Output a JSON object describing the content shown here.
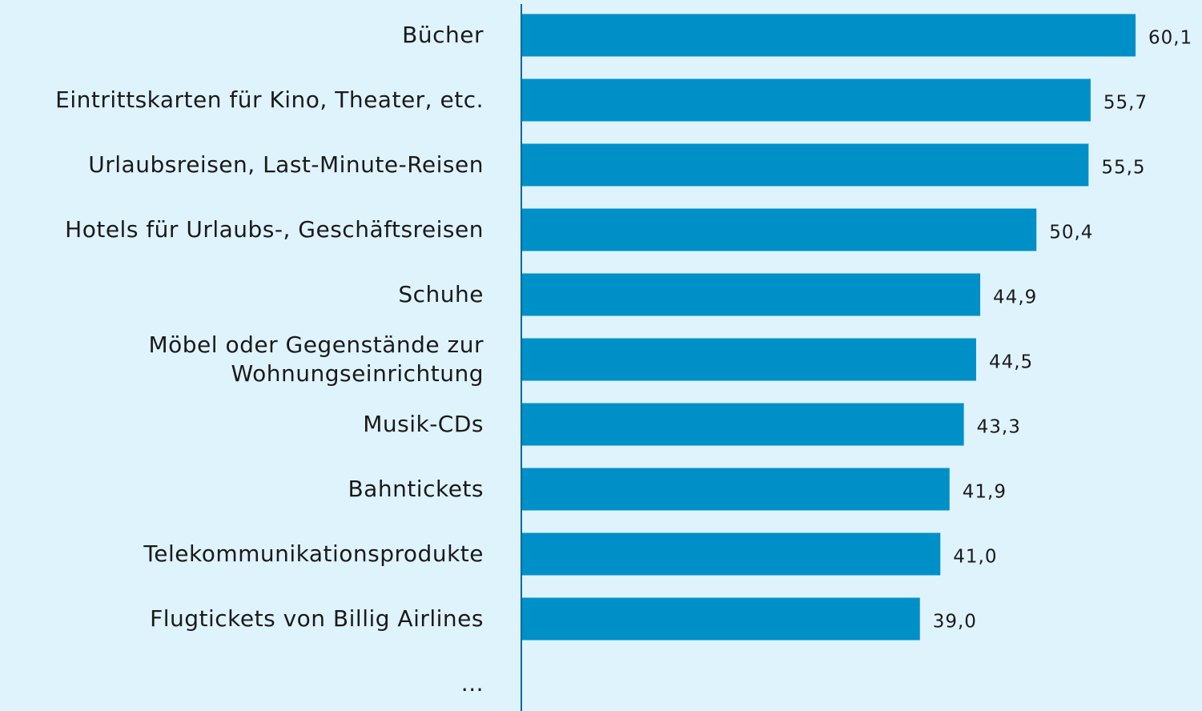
{
  "chart_data": {
    "type": "bar",
    "orientation": "horizontal",
    "categories": [
      "Bücher",
      "Eintrittskarten für Kino, Theater, etc.",
      "Urlaubsreisen, Last-Minute-Reisen",
      "Hotels für Urlaubs-, Geschäftsreisen",
      "Schuhe",
      "Möbel oder Gegenstände zur\nWohnungseinrichtung",
      "Musik-CDs",
      "Bahntickets",
      "Telekommunikationsprodukte",
      "Flugtickets von Billig Airlines",
      "..."
    ],
    "values": [
      60.1,
      55.7,
      55.5,
      50.4,
      44.9,
      44.5,
      43.3,
      41.9,
      41.0,
      39.0,
      null
    ],
    "value_labels": [
      "60,1",
      "55,7",
      "55,5",
      "50,4",
      "44,9",
      "44,5",
      "43,3",
      "41,9",
      "41,0",
      "39,0",
      null
    ],
    "color": "#0090c8",
    "xlim": [
      0,
      66.6
    ]
  }
}
